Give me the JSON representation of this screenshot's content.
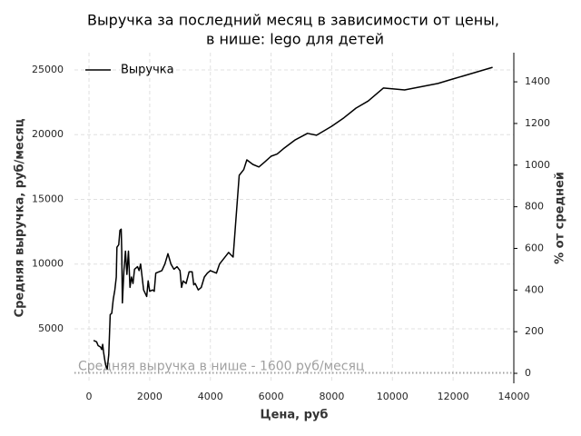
{
  "chart_data": {
    "type": "line",
    "title": [
      "Выручка за последний месяц в зависимости от цены,",
      "в нише: lego для детей"
    ],
    "xlabel": "Цена, руб",
    "ylabel": "Средняя выручка, руб/месяц",
    "y2label": "% от средней",
    "x": [
      150,
      250,
      300,
      380,
      420,
      450,
      480,
      520,
      550,
      600,
      650,
      700,
      750,
      800,
      850,
      900,
      920,
      980,
      1020,
      1060,
      1080,
      1100,
      1150,
      1200,
      1250,
      1300,
      1350,
      1400,
      1450,
      1500,
      1600,
      1650,
      1700,
      1800,
      1900,
      1950,
      2000,
      2100,
      2150,
      2200,
      2400,
      2500,
      2600,
      2700,
      2800,
      2900,
      3000,
      3050,
      3100,
      3200,
      3300,
      3400,
      3450,
      3500,
      3600,
      3700,
      3800,
      3900,
      4000,
      4200,
      4300,
      4500,
      4600,
      4750,
      4950,
      5100,
      5200,
      5400,
      5600,
      5800,
      6000,
      6200,
      6400,
      6800,
      7200,
      7500,
      8000,
      8400,
      8800,
      9200,
      9700,
      10400,
      11500,
      12000,
      13300
    ],
    "series": [
      {
        "name": "Выручка",
        "color": "#000000",
        "values": [
          4100,
          4000,
          3700,
          3600,
          3400,
          3800,
          3200,
          2600,
          2200,
          1900,
          3000,
          6100,
          6200,
          7300,
          8000,
          9000,
          11300,
          11500,
          12600,
          12700,
          11000,
          7000,
          9500,
          11000,
          9200,
          11000,
          8200,
          9000,
          8500,
          9600,
          9800,
          9500,
          10000,
          8000,
          7500,
          8700,
          7900,
          8000,
          7900,
          9300,
          9500,
          10000,
          10800,
          10000,
          9600,
          9800,
          9500,
          8200,
          8700,
          8500,
          9400,
          9400,
          8400,
          8500,
          8000,
          8200,
          9000,
          9300,
          9500,
          9300,
          10000,
          10600,
          10900,
          10540,
          16860,
          17300,
          18050,
          17700,
          17500,
          17900,
          18330,
          18500,
          18900,
          19600,
          20100,
          19950,
          20650,
          21300,
          22050,
          22600,
          23600,
          23450,
          23950,
          24300,
          25200
        ]
      }
    ],
    "reference": {
      "value": 1600,
      "label": "Средняя выручка в нише - 1600 руб/месяц",
      "color": "#a0a0a0"
    },
    "xlim": [
      -480,
      14000
    ],
    "xticks": [
      0,
      2000,
      4000,
      6000,
      8000,
      10000,
      12000,
      14000
    ],
    "ylim": [
      790,
      26330
    ],
    "yticks": [
      5000,
      10000,
      15000,
      20000,
      25000
    ],
    "y2lim": [
      -48,
      1540
    ],
    "y2ticks": [
      0,
      200,
      400,
      600,
      800,
      1000,
      1200,
      1400
    ],
    "grid": true,
    "legend": "upper left"
  }
}
